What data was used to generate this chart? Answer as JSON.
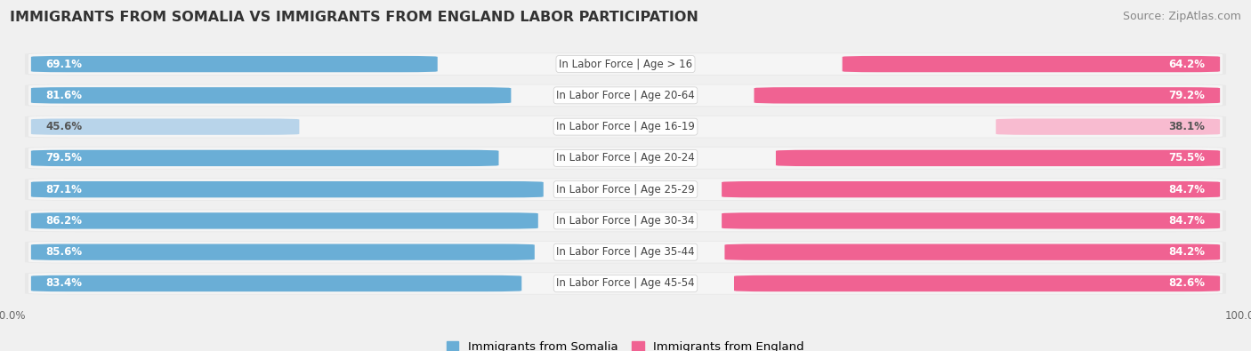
{
  "title": "IMMIGRANTS FROM SOMALIA VS IMMIGRANTS FROM ENGLAND LABOR PARTICIPATION",
  "source": "Source: ZipAtlas.com",
  "categories": [
    "In Labor Force | Age > 16",
    "In Labor Force | Age 20-64",
    "In Labor Force | Age 16-19",
    "In Labor Force | Age 20-24",
    "In Labor Force | Age 25-29",
    "In Labor Force | Age 30-34",
    "In Labor Force | Age 35-44",
    "In Labor Force | Age 45-54"
  ],
  "somalia_values": [
    69.1,
    81.6,
    45.6,
    79.5,
    87.1,
    86.2,
    85.6,
    83.4
  ],
  "england_values": [
    64.2,
    79.2,
    38.1,
    75.5,
    84.7,
    84.7,
    84.2,
    82.6
  ],
  "somalia_color": "#6aaed6",
  "somalia_color_light": "#b8d4ea",
  "england_color": "#f06292",
  "england_color_light": "#f8bbd0",
  "row_bg_color": "#e8e8e8",
  "row_inner_color": "#f5f5f5",
  "label_color_dark": "#555555",
  "label_color_white": "#ffffff",
  "max_value": 100.0,
  "title_fontsize": 11.5,
  "source_fontsize": 9,
  "value_fontsize": 8.5,
  "category_fontsize": 8.5,
  "legend_fontsize": 9.5,
  "axis_label_fontsize": 8.5,
  "background_color": "#f0f0f0"
}
